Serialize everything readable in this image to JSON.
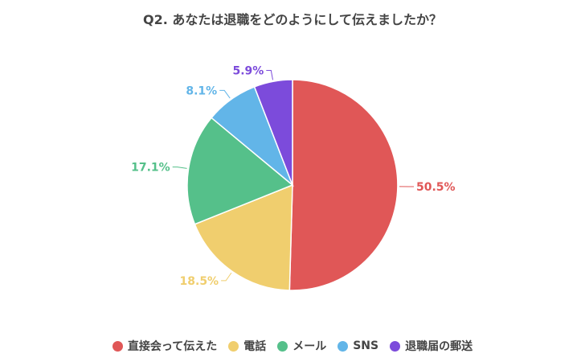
{
  "chart_data": {
    "type": "pie",
    "title": "Q2. あなたは退職をどのようにして伝えましたか？",
    "legend_position": "bottom",
    "slices": [
      {
        "label": "直接会って伝えた",
        "value": 50.5,
        "value_label": "50.5%",
        "color": "#e05757"
      },
      {
        "label": "電話",
        "value": 18.5,
        "value_label": "18.5%",
        "color": "#f0ce6e"
      },
      {
        "label": "メール",
        "value": 17.1,
        "value_label": "17.1%",
        "color": "#55c08a"
      },
      {
        "label": "SNS",
        "value": 8.1,
        "value_label": "8.1%",
        "color": "#62b5e8"
      },
      {
        "label": "退職届の郵送",
        "value": 5.9,
        "value_label": "5.9%",
        "color": "#7c4bdb"
      }
    ]
  }
}
